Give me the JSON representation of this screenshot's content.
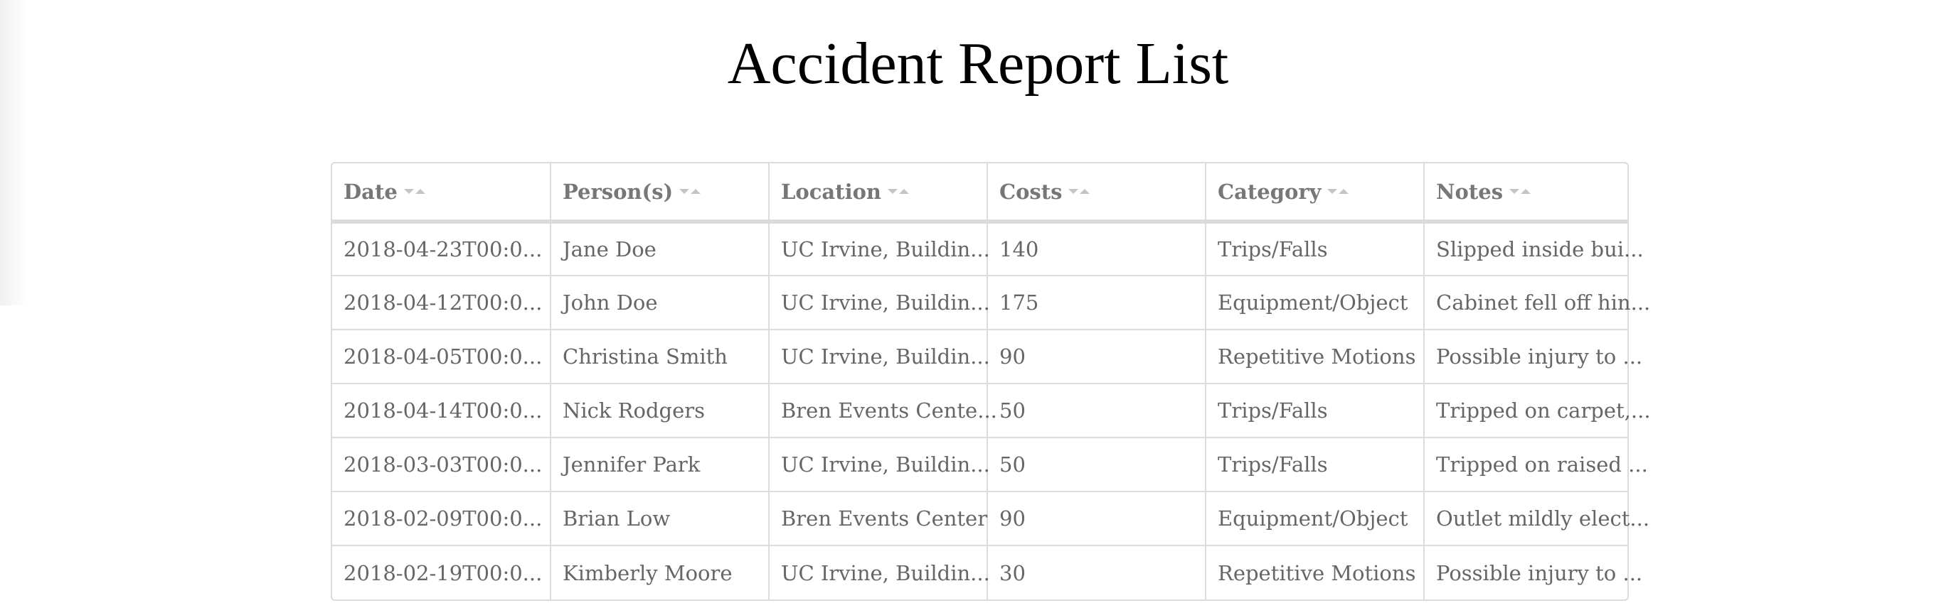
{
  "page": {
    "title": "Accident Report List"
  },
  "table": {
    "columns": [
      "Date",
      "Person(s)",
      "Location",
      "Costs",
      "Category",
      "Notes"
    ],
    "rows": [
      [
        "2018-04-23T00:0...",
        "Jane Doe",
        "UC Irvine, Buildin...",
        "140",
        "Trips/Falls",
        "Slipped inside bui..."
      ],
      [
        "2018-04-12T00:0...",
        "John Doe",
        "UC Irvine, Buildin...",
        "175",
        "Equipment/Object",
        "Cabinet fell off hin..."
      ],
      [
        "2018-04-05T00:0...",
        "Christina Smith",
        "UC Irvine, Buildin...",
        "90",
        "Repetitive Motions",
        "Possible injury to ..."
      ],
      [
        "2018-04-14T00:0...",
        "Nick Rodgers",
        "Bren Events Cente...",
        "50",
        "Trips/Falls",
        "Tripped on carpet,..."
      ],
      [
        "2018-03-03T00:0...",
        "Jennifer Park",
        "UC Irvine, Buildin...",
        "50",
        "Trips/Falls",
        "Tripped on raised ..."
      ],
      [
        "2018-02-09T00:0...",
        "Brian Low",
        "Bren Events Center",
        "90",
        "Equipment/Object",
        "Outlet mildly elect..."
      ],
      [
        "2018-02-19T00:0...",
        "Kimberly Moore",
        "UC Irvine, Buildin...",
        "30",
        "Repetitive Motions",
        "Possible injury to ..."
      ]
    ]
  },
  "colors": {
    "border": "#dcdcdc",
    "text": "#666666",
    "header_text": "#777777",
    "sort_icon": "#c4c4c4"
  },
  "icons": {
    "sort": "sort-arrows-icon"
  }
}
